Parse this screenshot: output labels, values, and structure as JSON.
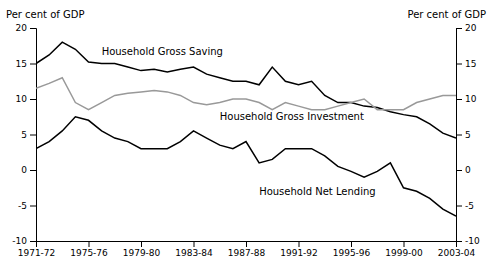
{
  "chart_data": {
    "type": "line",
    "categories": [
      "1971-72",
      null,
      null,
      null,
      "1975-76",
      null,
      null,
      null,
      "1979-80",
      null,
      null,
      null,
      "1983-84",
      null,
      null,
      null,
      "1987-88",
      null,
      null,
      null,
      "1991-92",
      null,
      null,
      null,
      "1995-96",
      null,
      null,
      null,
      "1999-00",
      null,
      null,
      null,
      "2003-04"
    ],
    "series": [
      {
        "name": "Household Gross Saving",
        "color": "#000000",
        "values": [
          15.0,
          16.2,
          18.0,
          17.0,
          15.2,
          15.0,
          15.0,
          14.5,
          14.0,
          14.2,
          13.8,
          14.2,
          14.5,
          13.5,
          13.0,
          12.5,
          12.5,
          12.0,
          14.5,
          12.5,
          12.0,
          12.5,
          10.5,
          9.5,
          9.5,
          9.0,
          8.8,
          8.2,
          7.8,
          7.5,
          6.5,
          5.2,
          4.5
        ]
      },
      {
        "name": "Household Gross Investment",
        "color": "#999999",
        "values": [
          11.5,
          12.2,
          13.0,
          9.5,
          8.5,
          9.5,
          10.5,
          10.8,
          11.0,
          11.2,
          11.0,
          10.5,
          9.5,
          9.2,
          9.5,
          10.0,
          10.0,
          9.5,
          8.5,
          9.5,
          9.0,
          8.5,
          8.5,
          9.0,
          9.5,
          10.0,
          8.5,
          8.5,
          8.5,
          9.5,
          10.0,
          10.5,
          10.5
        ]
      },
      {
        "name": "Household Net Lending",
        "color": "#000000",
        "values": [
          3.0,
          4.0,
          5.5,
          7.5,
          7.0,
          5.5,
          4.5,
          4.0,
          3.0,
          3.0,
          3.0,
          4.0,
          5.5,
          4.5,
          3.5,
          3.0,
          4.0,
          1.0,
          1.5,
          3.0,
          3.0,
          3.0,
          2.0,
          0.5,
          -0.2,
          -1.0,
          -0.2,
          1.0,
          -2.5,
          -3.0,
          -4.0,
          -5.5,
          -6.5
        ]
      }
    ],
    "y_label": "Per cent of GDP",
    "y2_label": "Per cent of GDP",
    "ylim": [
      -10,
      20
    ],
    "yticks": [
      -10,
      -5,
      0,
      5,
      10,
      15,
      20
    ],
    "y2lim": [
      -10,
      20
    ],
    "y2ticks": [
      -10,
      -5,
      0,
      5,
      10,
      15,
      20
    ],
    "annotations": [
      {
        "text": "Household Gross Saving",
        "x": 5,
        "y": 16.2
      },
      {
        "text": "Household Gross Investment",
        "x": 14,
        "y": 7.0
      },
      {
        "text": "Household Net Lending",
        "x": 17,
        "y": -3.5
      }
    ]
  }
}
